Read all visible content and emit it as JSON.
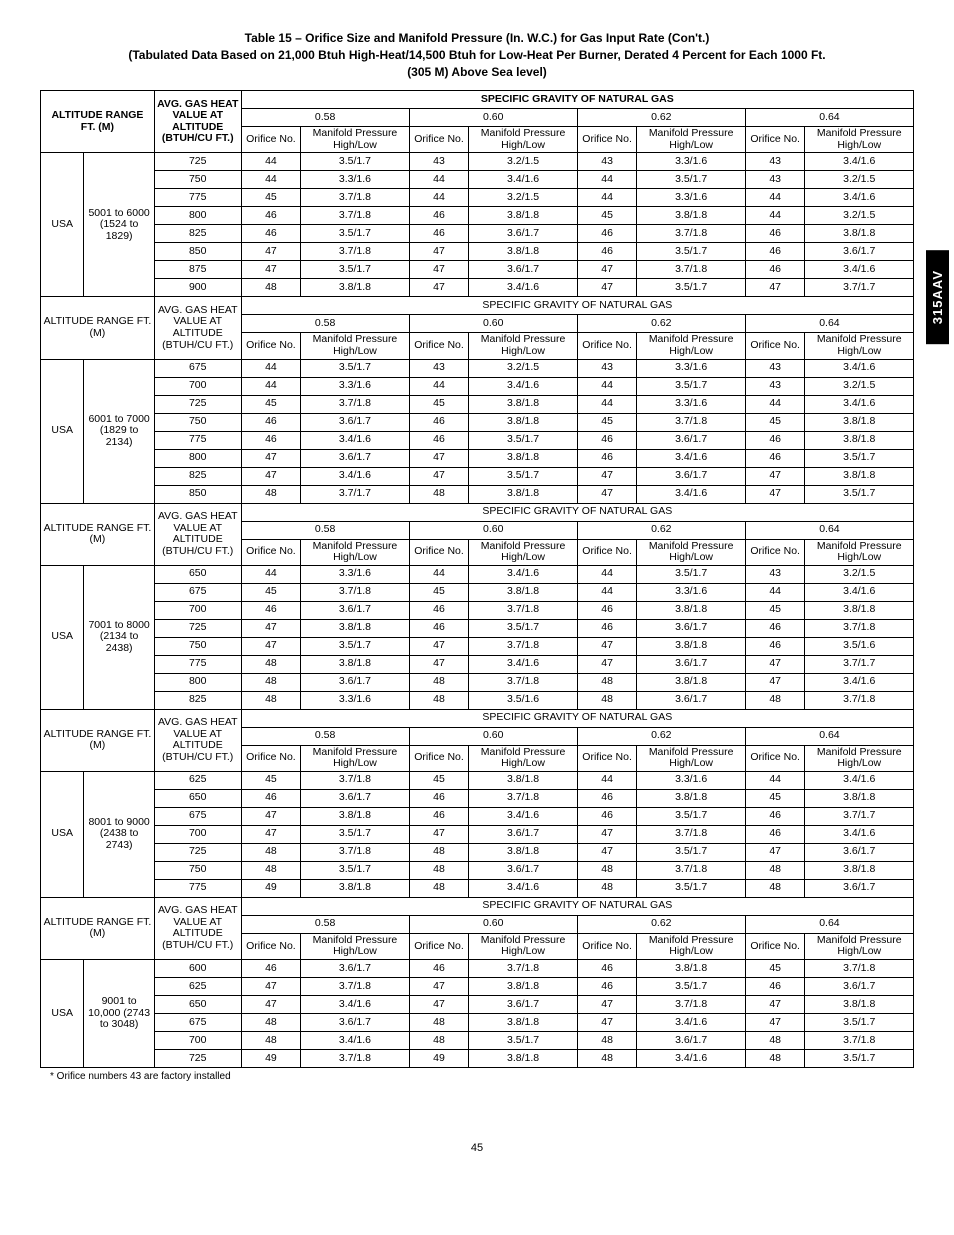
{
  "title": {
    "l1": "Table 15 – Orifice Size and Manifold Pressure (In. W.C.) for Gas Input Rate (Con't.)",
    "l2": "(Tabulated Data Based on 21,000 Btuh High-Heat/14,500 Btuh for Low-Heat Per Burner, Derated 4 Percent for Each 1000 Ft.",
    "l3": "(305 M) Above Sea level)"
  },
  "side_label": "315AAV",
  "footnote": "* Orifice numbers 43 are factory installed",
  "page_number": "45",
  "hdr": {
    "altrange": "ALTITUDE RANGE FT. (M)",
    "avggas": "AVG. GAS HEAT VALUE AT ALTITUDE (BTUH/CU FT.)",
    "sg_title": "SPECIFIC GRAVITY OF NATURAL GAS",
    "sg": [
      "0.58",
      "0.60",
      "0.62",
      "0.64"
    ],
    "orf": "Orifice No.",
    "man": "Manifold Pressure High/Low"
  },
  "sections": [
    {
      "country": "USA",
      "range": "5001 to 6000 (1524 to 1829)",
      "rows": [
        {
          "h": "725",
          "d": [
            "44",
            "3.5/1.7",
            "43",
            "3.2/1.5",
            "43",
            "3.3/1.6",
            "43",
            "3.4/1.6"
          ]
        },
        {
          "h": "750",
          "d": [
            "44",
            "3.3/1.6",
            "44",
            "3.4/1.6",
            "44",
            "3.5/1.7",
            "43",
            "3.2/1.5"
          ]
        },
        {
          "h": "775",
          "d": [
            "45",
            "3.7/1.8",
            "44",
            "3.2/1.5",
            "44",
            "3.3/1.6",
            "44",
            "3.4/1.6"
          ]
        },
        {
          "h": "800",
          "d": [
            "46",
            "3.7/1.8",
            "46",
            "3.8/1.8",
            "45",
            "3.8/1.8",
            "44",
            "3.2/1.5"
          ]
        },
        {
          "h": "825",
          "d": [
            "46",
            "3.5/1.7",
            "46",
            "3.6/1.7",
            "46",
            "3.7/1.8",
            "46",
            "3.8/1.8"
          ]
        },
        {
          "h": "850",
          "d": [
            "47",
            "3.7/1.8",
            "47",
            "3.8/1.8",
            "46",
            "3.5/1.7",
            "46",
            "3.6/1.7"
          ]
        },
        {
          "h": "875",
          "d": [
            "47",
            "3.5/1.7",
            "47",
            "3.6/1.7",
            "47",
            "3.7/1.8",
            "46",
            "3.4/1.6"
          ]
        },
        {
          "h": "900",
          "d": [
            "48",
            "3.8/1.8",
            "47",
            "3.4/1.6",
            "47",
            "3.5/1.7",
            "47",
            "3.7/1.7"
          ]
        }
      ]
    },
    {
      "country": "USA",
      "range": "6001 to 7000 (1829 to 2134)",
      "rows": [
        {
          "h": "675",
          "d": [
            "44",
            "3.5/1.7",
            "43",
            "3.2/1.5",
            "43",
            "3.3/1.6",
            "43",
            "3.4/1.6"
          ]
        },
        {
          "h": "700",
          "d": [
            "44",
            "3.3/1.6",
            "44",
            "3.4/1.6",
            "44",
            "3.5/1.7",
            "43",
            "3.2/1.5"
          ]
        },
        {
          "h": "725",
          "d": [
            "45",
            "3.7/1.8",
            "45",
            "3.8/1.8",
            "44",
            "3.3/1.6",
            "44",
            "3.4/1.6"
          ]
        },
        {
          "h": "750",
          "d": [
            "46",
            "3.6/1.7",
            "46",
            "3.8/1.8",
            "45",
            "3.7/1.8",
            "45",
            "3.8/1.8"
          ]
        },
        {
          "h": "775",
          "d": [
            "46",
            "3.4/1.6",
            "46",
            "3.5/1.7",
            "46",
            "3.6/1.7",
            "46",
            "3.8/1.8"
          ]
        },
        {
          "h": "800",
          "d": [
            "47",
            "3.6/1.7",
            "47",
            "3.8/1.8",
            "46",
            "3.4/1.6",
            "46",
            "3.5/1.7"
          ]
        },
        {
          "h": "825",
          "d": [
            "47",
            "3.4/1.6",
            "47",
            "3.5/1.7",
            "47",
            "3.6/1.7",
            "47",
            "3.8/1.8"
          ]
        },
        {
          "h": "850",
          "d": [
            "48",
            "3.7/1.7",
            "48",
            "3.8/1.8",
            "47",
            "3.4/1.6",
            "47",
            "3.5/1.7"
          ]
        }
      ]
    },
    {
      "country": "USA",
      "range": "7001 to 8000 (2134 to 2438)",
      "rows": [
        {
          "h": "650",
          "d": [
            "44",
            "3.3/1.6",
            "44",
            "3.4/1.6",
            "44",
            "3.5/1.7",
            "43",
            "3.2/1.5"
          ]
        },
        {
          "h": "675",
          "d": [
            "45",
            "3.7/1.8",
            "45",
            "3.8/1.8",
            "44",
            "3.3/1.6",
            "44",
            "3.4/1.6"
          ]
        },
        {
          "h": "700",
          "d": [
            "46",
            "3.6/1.7",
            "46",
            "3.7/1.8",
            "46",
            "3.8/1.8",
            "45",
            "3.8/1.8"
          ]
        },
        {
          "h": "725",
          "d": [
            "47",
            "3.8/1.8",
            "46",
            "3.5/1.7",
            "46",
            "3.6/1.7",
            "46",
            "3.7/1.8"
          ]
        },
        {
          "h": "750",
          "d": [
            "47",
            "3.5/1.7",
            "47",
            "3.7/1.8",
            "47",
            "3.8/1.8",
            "46",
            "3.5/1.6"
          ]
        },
        {
          "h": "775",
          "d": [
            "48",
            "3.8/1.8",
            "47",
            "3.4/1.6",
            "47",
            "3.6/1.7",
            "47",
            "3.7/1.7"
          ]
        },
        {
          "h": "800",
          "d": [
            "48",
            "3.6/1.7",
            "48",
            "3.7/1.8",
            "48",
            "3.8/1.8",
            "47",
            "3.4/1.6"
          ]
        },
        {
          "h": "825",
          "d": [
            "48",
            "3.3/1.6",
            "48",
            "3.5/1.6",
            "48",
            "3.6/1.7",
            "48",
            "3.7/1.8"
          ]
        }
      ]
    },
    {
      "country": "USA",
      "range": "8001 to 9000 (2438 to 2743)",
      "rows": [
        {
          "h": "625",
          "d": [
            "45",
            "3.7/1.8",
            "45",
            "3.8/1.8",
            "44",
            "3.3/1.6",
            "44",
            "3.4/1.6"
          ]
        },
        {
          "h": "650",
          "d": [
            "46",
            "3.6/1.7",
            "46",
            "3.7/1.8",
            "46",
            "3.8/1.8",
            "45",
            "3.8/1.8"
          ]
        },
        {
          "h": "675",
          "d": [
            "47",
            "3.8/1.8",
            "46",
            "3.4/1.6",
            "46",
            "3.5/1.7",
            "46",
            "3.7/1.7"
          ]
        },
        {
          "h": "700",
          "d": [
            "47",
            "3.5/1.7",
            "47",
            "3.6/1.7",
            "47",
            "3.7/1.8",
            "46",
            "3.4/1.6"
          ]
        },
        {
          "h": "725",
          "d": [
            "48",
            "3.7/1.8",
            "48",
            "3.8/1.8",
            "47",
            "3.5/1.7",
            "47",
            "3.6/1.7"
          ]
        },
        {
          "h": "750",
          "d": [
            "48",
            "3.5/1.7",
            "48",
            "3.6/1.7",
            "48",
            "3.7/1.8",
            "48",
            "3.8/1.8"
          ]
        },
        {
          "h": "775",
          "d": [
            "49",
            "3.8/1.8",
            "48",
            "3.4/1.6",
            "48",
            "3.5/1.7",
            "48",
            "3.6/1.7"
          ]
        }
      ]
    },
    {
      "country": "USA",
      "range": "9001 to 10,000 (2743 to 3048)",
      "rows": [
        {
          "h": "600",
          "d": [
            "46",
            "3.6/1.7",
            "46",
            "3.7/1.8",
            "46",
            "3.8/1.8",
            "45",
            "3.7/1.8"
          ]
        },
        {
          "h": "625",
          "d": [
            "47",
            "3.7/1.8",
            "47",
            "3.8/1.8",
            "46",
            "3.5/1.7",
            "46",
            "3.6/1.7"
          ]
        },
        {
          "h": "650",
          "d": [
            "47",
            "3.4/1.6",
            "47",
            "3.6/1.7",
            "47",
            "3.7/1.8",
            "47",
            "3.8/1.8"
          ]
        },
        {
          "h": "675",
          "d": [
            "48",
            "3.6/1.7",
            "48",
            "3.8/1.8",
            "47",
            "3.4/1.6",
            "47",
            "3.5/1.7"
          ]
        },
        {
          "h": "700",
          "d": [
            "48",
            "3.4/1.6",
            "48",
            "3.5/1.7",
            "48",
            "3.6/1.7",
            "48",
            "3.7/1.8"
          ]
        },
        {
          "h": "725",
          "d": [
            "49",
            "3.7/1.8",
            "49",
            "3.8/1.8",
            "48",
            "3.4/1.6",
            "48",
            "3.5/1.7"
          ]
        }
      ]
    }
  ]
}
